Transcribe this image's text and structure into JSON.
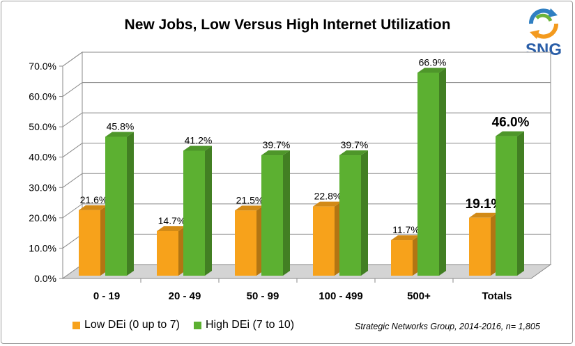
{
  "chart_data": {
    "type": "bar",
    "title": "New Jobs, Low Versus High Internet Utilization",
    "categories": [
      "0 - 19",
      "20 - 49",
      "50 - 99",
      "100 - 499",
      "500+",
      "Totals"
    ],
    "series": [
      {
        "name": "Low DEi (0 up to 7)",
        "values": [
          21.6,
          14.7,
          21.5,
          22.8,
          11.7,
          19.1
        ],
        "labels": [
          "21.6%",
          "14.7%",
          "21.5%",
          "22.8%",
          "11.7%",
          "19.1%"
        ],
        "color": "#f7a21b"
      },
      {
        "name": "High DEi (7 to 10)",
        "values": [
          45.8,
          41.2,
          39.7,
          39.7,
          66.9,
          46.0
        ],
        "labels": [
          "45.8%",
          "41.2%",
          "39.7%",
          "39.7%",
          "66.9%",
          "46.0%"
        ],
        "color": "#5cb031"
      }
    ],
    "yticks": [
      "0.0%",
      "10.0%",
      "20.0%",
      "30.0%",
      "40.0%",
      "50.0%",
      "60.0%",
      "70.0%"
    ],
    "ylim": [
      0,
      70
    ],
    "grid": true,
    "legend_position": "bottom-left",
    "source": "Strategic Networks Group, 2014-2016, n= 1,805"
  },
  "logo": {
    "text": "SNG",
    "color": "#2a5ea8"
  }
}
